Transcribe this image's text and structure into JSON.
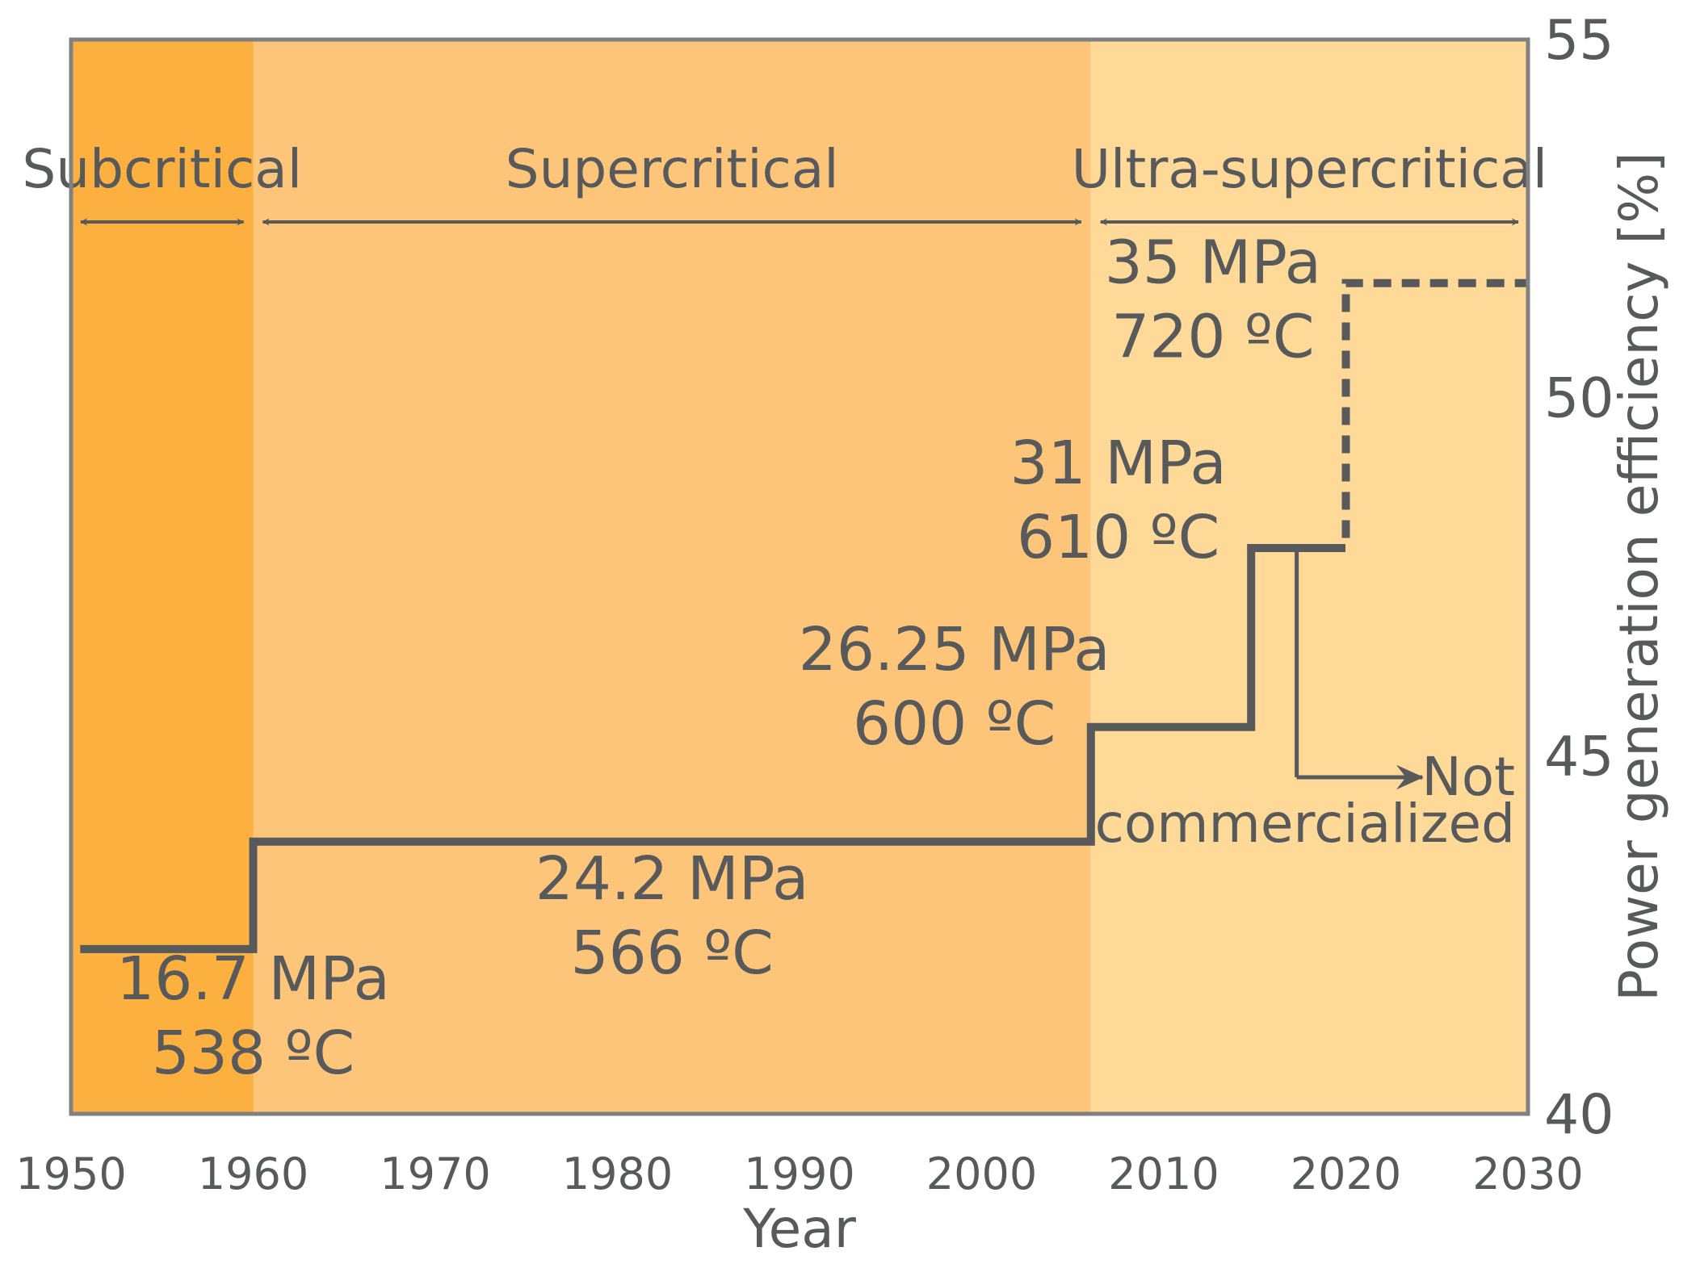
{
  "colors": {
    "subcritical_bg": "#fbb040",
    "supercritical_bg": "#fdc57a",
    "ultra_bg": "#ffd998",
    "line": "#58595b",
    "frame": "#808080"
  },
  "chart_data": {
    "type": "line",
    "title": "",
    "xlabel": "Year",
    "ylabel": "Power generation efficiency [%]",
    "xlim": [
      1950,
      2030
    ],
    "ylim": [
      40,
      55
    ],
    "x_ticks": [
      "1950",
      "1960",
      "1970",
      "1980",
      "1990",
      "2000",
      "2010",
      "2020",
      "2030"
    ],
    "y_ticks": [
      "40",
      "45",
      "50",
      "55"
    ],
    "y_axis_side": "right",
    "regions": [
      {
        "name": "Subcritical",
        "x_start": 1950,
        "x_end": 1960
      },
      {
        "name": "Supercritical",
        "x_start": 1960,
        "x_end": 2006
      },
      {
        "name": "Ultra-supercritical",
        "x_start": 2006,
        "x_end": 2030
      }
    ],
    "series": [
      {
        "name": "Commercialized",
        "style": "solid",
        "points": [
          [
            1950.5,
            42.3
          ],
          [
            1960,
            42.3
          ],
          [
            1960,
            43.8
          ],
          [
            2006,
            43.8
          ],
          [
            2006,
            45.4
          ],
          [
            2014.8,
            45.4
          ],
          [
            2014.8,
            47.9
          ],
          [
            2019,
            47.9
          ]
        ]
      },
      {
        "name": "Not commercialized",
        "style": "dashed",
        "points": [
          [
            2019,
            47.9
          ],
          [
            2020,
            47.9
          ],
          [
            2020,
            51.6
          ],
          [
            2030,
            51.6
          ]
        ]
      }
    ],
    "annotations": [
      {
        "pressure": "16.7 MPa",
        "temperature": "538 ºC",
        "x": 1960,
        "y": 41.6
      },
      {
        "pressure": "24.2 MPa",
        "temperature": "566 ºC",
        "x": 1983,
        "y": 43.0
      },
      {
        "pressure": "26.25 MPa",
        "temperature": "600 ºC",
        "x": 1998.5,
        "y": 46.2
      },
      {
        "pressure": "31 MPa",
        "temperature": "610 ºC",
        "x": 2007.5,
        "y": 48.8
      },
      {
        "pressure": "35 MPa",
        "temperature": "720 ºC",
        "x": 2012.7,
        "y": 51.6
      }
    ],
    "callout": {
      "line1": "Not",
      "line2": "commercialized"
    }
  }
}
